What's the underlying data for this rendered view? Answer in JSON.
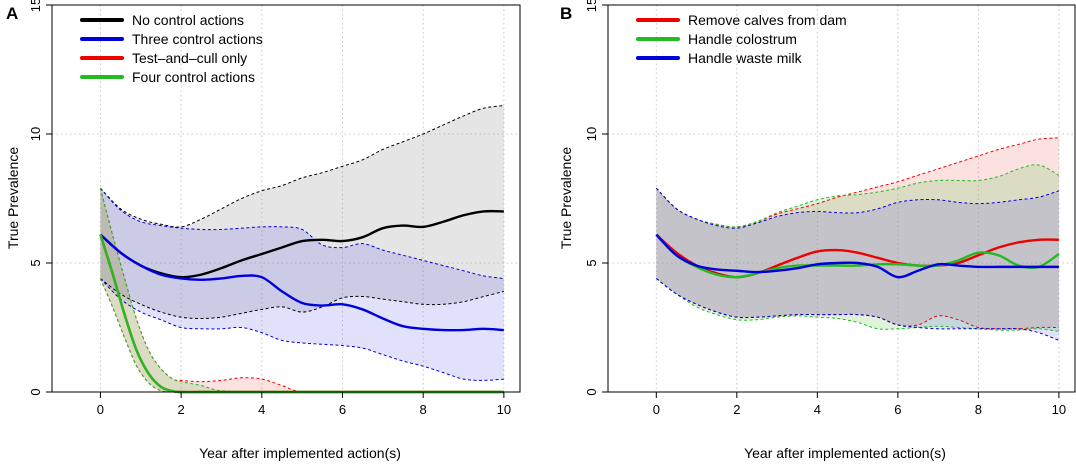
{
  "chart_data": [
    {
      "panel_label": "A",
      "type": "line",
      "xlabel": "Year after implemented action(s)",
      "ylabel": "True Prevalence",
      "xlim": [
        -1.2,
        10.4
      ],
      "ylim": [
        0,
        15
      ],
      "xticks": [
        0,
        2,
        4,
        6,
        8,
        10
      ],
      "yticks": [
        0,
        5,
        10,
        15
      ],
      "grid": true,
      "legend_position": "top-left",
      "series": [
        {
          "name": "No control actions",
          "color": "#000000",
          "band_fill": "rgba(150,150,150,0.25)",
          "x": [
            0,
            0.5,
            1,
            1.5,
            2,
            2.5,
            3,
            3.5,
            4,
            4.5,
            5,
            5.5,
            6,
            6.5,
            7,
            7.5,
            8,
            8.5,
            9,
            9.5,
            10
          ],
          "y": [
            6.1,
            5.4,
            4.9,
            4.6,
            4.45,
            4.55,
            4.8,
            5.1,
            5.35,
            5.6,
            5.85,
            5.9,
            5.85,
            6.0,
            6.35,
            6.45,
            6.4,
            6.6,
            6.85,
            7.0,
            7.0
          ],
          "upper": [
            7.9,
            7.1,
            6.7,
            6.5,
            6.4,
            6.7,
            7.1,
            7.5,
            7.8,
            8.0,
            8.3,
            8.5,
            8.75,
            9.0,
            9.4,
            9.7,
            10.0,
            10.35,
            10.7,
            11.0,
            11.1
          ],
          "lower": [
            4.4,
            3.8,
            3.4,
            3.1,
            2.9,
            2.85,
            2.9,
            3.05,
            3.2,
            3.3,
            3.1,
            3.3,
            3.65,
            3.7,
            3.6,
            3.5,
            3.4,
            3.4,
            3.5,
            3.7,
            3.9
          ]
        },
        {
          "name": "Three control actions",
          "color": "#0000dd",
          "band_fill": "rgba(90,90,240,0.18)",
          "x": [
            0,
            0.5,
            1,
            1.5,
            2,
            2.5,
            3,
            3.5,
            4,
            4.5,
            5,
            5.5,
            6,
            6.5,
            7,
            7.5,
            8,
            8.5,
            9,
            9.5,
            10
          ],
          "y": [
            6.1,
            5.4,
            4.9,
            4.55,
            4.4,
            4.35,
            4.4,
            4.5,
            4.45,
            3.9,
            3.45,
            3.35,
            3.4,
            3.2,
            2.85,
            2.55,
            2.45,
            2.4,
            2.4,
            2.45,
            2.4
          ],
          "upper": [
            7.9,
            7.05,
            6.6,
            6.45,
            6.35,
            6.3,
            6.3,
            6.35,
            6.4,
            6.4,
            6.3,
            5.7,
            5.6,
            5.75,
            5.5,
            5.3,
            5.1,
            4.9,
            4.7,
            4.5,
            4.4
          ],
          "lower": [
            4.4,
            3.6,
            3.1,
            2.8,
            2.5,
            2.45,
            2.45,
            2.5,
            2.3,
            2.0,
            1.9,
            1.85,
            1.8,
            1.7,
            1.45,
            1.2,
            1.0,
            0.75,
            0.5,
            0.45,
            0.5
          ]
        },
        {
          "name": "Test–and–cull only",
          "color": "#ee0000",
          "band_fill": "rgba(240,90,90,0.18)",
          "x": [
            0,
            0.3,
            0.6,
            0.9,
            1.2,
            1.5,
            1.8,
            2.0,
            2.5,
            3.0,
            3.5,
            4.0,
            4.5,
            5.0,
            6,
            7,
            8,
            9,
            10
          ],
          "y": [
            6.1,
            4.6,
            3.0,
            1.6,
            0.7,
            0.2,
            0.03,
            0,
            0,
            0,
            0,
            0,
            0,
            0,
            0,
            0,
            0,
            0,
            0
          ],
          "upper": [
            7.9,
            6.1,
            4.4,
            2.8,
            1.6,
            0.9,
            0.5,
            0.45,
            0.4,
            0.45,
            0.55,
            0.5,
            0.25,
            0,
            0,
            0,
            0,
            0,
            0
          ],
          "lower": [
            4.4,
            3.3,
            2.1,
            1.0,
            0.35,
            0.05,
            0,
            0,
            0,
            0,
            0,
            0,
            0,
            0,
            0,
            0,
            0,
            0,
            0
          ]
        },
        {
          "name": "Four control actions",
          "color": "#22bb22",
          "band_fill": "rgba(110,200,90,0.22)",
          "x": [
            0,
            0.3,
            0.6,
            0.9,
            1.2,
            1.5,
            1.8,
            2.0,
            2.5,
            3.0,
            4,
            5,
            6,
            7,
            8,
            9,
            10
          ],
          "y": [
            6.1,
            4.6,
            3.0,
            1.6,
            0.7,
            0.2,
            0.03,
            0,
            0,
            0,
            0,
            0,
            0,
            0,
            0,
            0,
            0
          ],
          "upper": [
            7.9,
            6.1,
            4.4,
            2.8,
            1.6,
            0.9,
            0.5,
            0.4,
            0.25,
            0.05,
            0,
            0,
            0,
            0,
            0,
            0,
            0
          ],
          "lower": [
            4.4,
            3.3,
            2.1,
            1.0,
            0.35,
            0.05,
            0,
            0,
            0,
            0,
            0,
            0,
            0,
            0,
            0,
            0,
            0
          ]
        }
      ]
    },
    {
      "panel_label": "B",
      "type": "line",
      "xlabel": "Year after implemented action(s)",
      "ylabel": "True Prevalence",
      "xlim": [
        -1.2,
        10.4
      ],
      "ylim": [
        0,
        15
      ],
      "xticks": [
        0,
        2,
        4,
        6,
        8,
        10
      ],
      "yticks": [
        0,
        5,
        10,
        15
      ],
      "grid": true,
      "legend_position": "top-left",
      "series": [
        {
          "name": "Remove calves from dam",
          "color": "#ee0000",
          "band_fill": "rgba(240,90,90,0.18)",
          "x": [
            0,
            0.5,
            1,
            1.5,
            2,
            2.5,
            3,
            3.5,
            4,
            4.5,
            5,
            5.5,
            6,
            6.5,
            7,
            7.5,
            8,
            8.5,
            9,
            9.5,
            10
          ],
          "y": [
            6.1,
            5.4,
            4.9,
            4.6,
            4.45,
            4.6,
            4.9,
            5.2,
            5.45,
            5.5,
            5.4,
            5.2,
            5.0,
            4.9,
            4.9,
            5.0,
            5.3,
            5.6,
            5.8,
            5.9,
            5.9
          ],
          "upper": [
            7.9,
            7.1,
            6.7,
            6.5,
            6.4,
            6.6,
            6.9,
            7.1,
            7.3,
            7.55,
            7.75,
            7.95,
            8.15,
            8.4,
            8.65,
            8.9,
            9.15,
            9.4,
            9.6,
            9.8,
            9.85
          ],
          "lower": [
            4.4,
            3.8,
            3.4,
            3.1,
            2.9,
            2.9,
            2.95,
            3.0,
            3.0,
            3.0,
            3.0,
            2.9,
            2.6,
            2.6,
            2.95,
            2.8,
            2.5,
            2.45,
            2.45,
            2.5,
            2.5
          ]
        },
        {
          "name": "Handle colostrum",
          "color": "#22bb22",
          "band_fill": "rgba(110,200,90,0.22)",
          "x": [
            0,
            0.5,
            1,
            1.5,
            2,
            2.5,
            3,
            3.5,
            4,
            4.5,
            5,
            5.5,
            6,
            6.5,
            7,
            7.5,
            8,
            8.5,
            9,
            9.5,
            10
          ],
          "y": [
            6.1,
            5.3,
            4.85,
            4.55,
            4.45,
            4.6,
            4.8,
            4.9,
            4.9,
            4.9,
            4.9,
            4.95,
            4.95,
            4.9,
            4.9,
            5.1,
            5.4,
            5.3,
            4.9,
            4.85,
            5.35
          ],
          "upper": [
            7.9,
            7.1,
            6.7,
            6.5,
            6.4,
            6.6,
            6.95,
            7.2,
            7.45,
            7.6,
            7.65,
            7.75,
            7.9,
            8.1,
            8.2,
            8.2,
            8.2,
            8.35,
            8.65,
            8.8,
            8.4
          ],
          "lower": [
            4.4,
            3.8,
            3.3,
            3.0,
            2.8,
            2.8,
            2.9,
            2.95,
            2.9,
            2.85,
            2.7,
            2.45,
            2.45,
            2.5,
            2.55,
            2.5,
            2.45,
            2.4,
            2.4,
            2.45,
            2.35
          ]
        },
        {
          "name": "Handle waste milk",
          "color": "#0000dd",
          "band_fill": "rgba(90,90,240,0.18)",
          "x": [
            0,
            0.5,
            1,
            1.5,
            2,
            2.5,
            3,
            3.5,
            4,
            4.5,
            5,
            5.5,
            6,
            6.5,
            7,
            7.5,
            8,
            8.5,
            9,
            9.5,
            10
          ],
          "y": [
            6.1,
            5.3,
            4.9,
            4.75,
            4.7,
            4.65,
            4.7,
            4.8,
            4.95,
            5.0,
            5.0,
            4.85,
            4.45,
            4.7,
            4.95,
            4.9,
            4.85,
            4.85,
            4.85,
            4.85,
            4.85
          ],
          "upper": [
            7.9,
            7.1,
            6.7,
            6.45,
            6.35,
            6.55,
            6.8,
            6.95,
            7.0,
            6.95,
            6.95,
            7.1,
            7.35,
            7.45,
            7.45,
            7.35,
            7.3,
            7.35,
            7.45,
            7.55,
            7.8
          ],
          "lower": [
            4.4,
            3.8,
            3.4,
            3.1,
            2.9,
            2.9,
            2.95,
            3.0,
            3.0,
            3.0,
            3.0,
            2.9,
            2.6,
            2.5,
            2.45,
            2.45,
            2.45,
            2.45,
            2.45,
            2.3,
            2.0
          ]
        }
      ]
    }
  ]
}
